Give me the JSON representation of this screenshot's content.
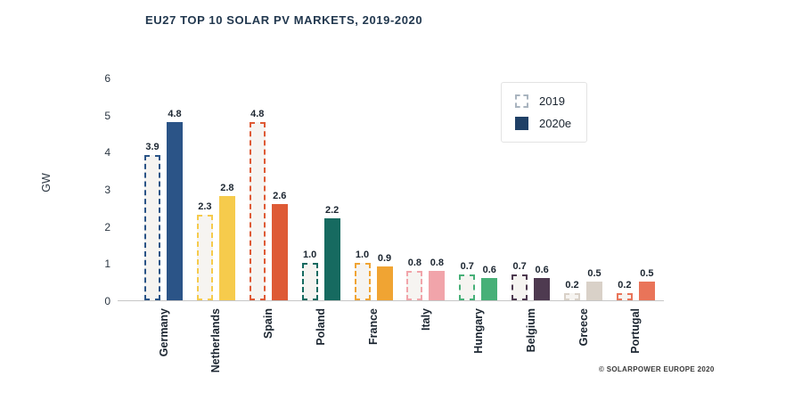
{
  "header": {
    "title": "EU27 TOP 10 SOLAR PV MARKETS, 2019-2020"
  },
  "legend": {
    "items": [
      {
        "label": "2019",
        "swatch": "dashed-outline"
      },
      {
        "label": "2020e",
        "swatch": "solid-navy"
      }
    ]
  },
  "footer": {
    "credit": "© SOLARPOWER EUROPE 2020"
  },
  "chart_data": {
    "type": "bar",
    "title": "EU27 TOP 10 SOLAR PV MARKETS, 2019-2020",
    "xlabel": "",
    "ylabel": "GW",
    "ylim": [
      0,
      6
    ],
    "yticks": [
      0,
      1,
      2,
      3,
      4,
      5,
      6
    ],
    "grid": false,
    "legend_position": "top-right",
    "value_labels_decimals": 1,
    "categories": [
      "Germany",
      "Netherlands",
      "Spain",
      "Poland",
      "France",
      "Italy",
      "Hungary",
      "Belgium",
      "Greece",
      "Portugal"
    ],
    "series": [
      {
        "name": "2019",
        "style": "dashed",
        "values": [
          3.9,
          2.3,
          4.8,
          1.0,
          1.0,
          0.8,
          0.7,
          0.7,
          0.2,
          0.2
        ]
      },
      {
        "name": "2020e",
        "style": "solid",
        "values": [
          4.8,
          2.8,
          2.6,
          2.2,
          0.9,
          0.8,
          0.6,
          0.6,
          0.5,
          0.5
        ]
      }
    ],
    "category_colors": {
      "Germany": "#2B5487",
      "Netherlands": "#F6CB4C",
      "Spain": "#DE5A35",
      "Poland": "#166A60",
      "France": "#F0A433",
      "Italy": "#F1A4AA",
      "Hungary": "#47B078",
      "Belgium": "#4E3A50",
      "Greece": "#D9D1C8",
      "Portugal": "#E97459"
    },
    "colors": {
      "dashed_fill": "#F6F4F1",
      "legend_navy": "#1F4066",
      "axis_line": "#C6C6C6",
      "text": "#1B2530"
    }
  }
}
